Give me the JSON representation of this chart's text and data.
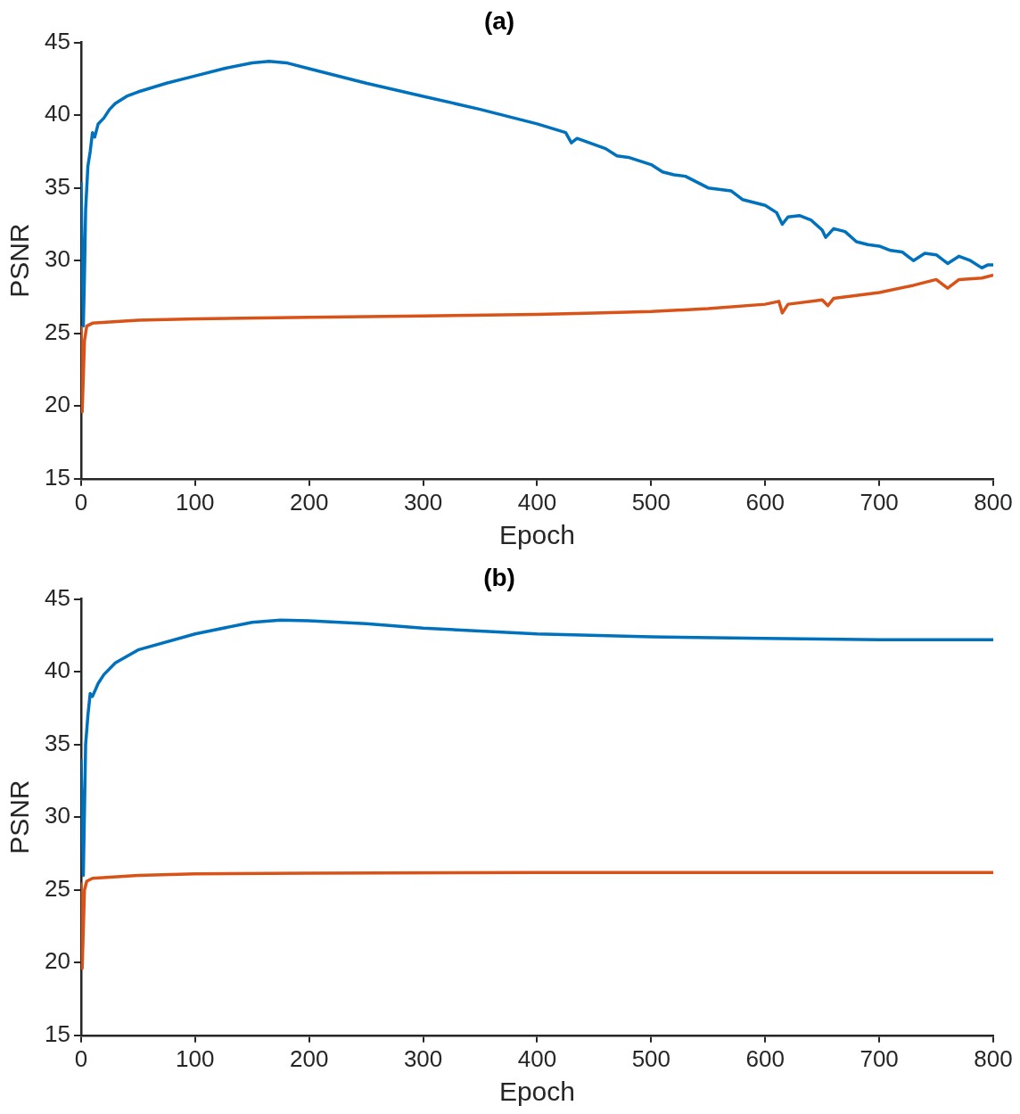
{
  "chart_data": [
    {
      "type": "line",
      "title": "(a)",
      "xlabel": "Epoch",
      "ylabel": "PSNR",
      "xlim": [
        0,
        800
      ],
      "xticks": [
        0,
        100,
        200,
        300,
        400,
        500,
        600,
        700,
        800
      ],
      "ylim": [
        15,
        45
      ],
      "yticks": [
        15,
        20,
        25,
        30,
        35,
        40,
        45
      ],
      "grid": false,
      "marker": "none",
      "series": [
        {
          "color": "#0072bd",
          "x": [
            0,
            2,
            3,
            4,
            6,
            8,
            10,
            12,
            15,
            20,
            25,
            30,
            40,
            50,
            75,
            100,
            125,
            150,
            165,
            180,
            200,
            250,
            300,
            350,
            400,
            425,
            430,
            435,
            460,
            470,
            480,
            500,
            510,
            520,
            530,
            550,
            570,
            580,
            600,
            610,
            615,
            620,
            630,
            640,
            650,
            653,
            660,
            670,
            680,
            690,
            700,
            710,
            720,
            730,
            740,
            750,
            760,
            770,
            780,
            790,
            795,
            800
          ],
          "values": [
            35.4,
            25.5,
            29,
            33.5,
            36.5,
            37.5,
            38.8,
            38.5,
            39.4,
            39.8,
            40.4,
            40.8,
            41.3,
            41.6,
            42.2,
            42.7,
            43.2,
            43.6,
            43.7,
            43.6,
            43.2,
            42.2,
            41.3,
            40.4,
            39.4,
            38.8,
            38.1,
            38.4,
            37.7,
            37.2,
            37.1,
            36.6,
            36.1,
            35.9,
            35.8,
            35,
            34.8,
            34.2,
            33.8,
            33.3,
            32.5,
            33,
            33.1,
            32.8,
            32.1,
            31.6,
            32.2,
            32,
            31.3,
            31.1,
            31,
            30.7,
            30.6,
            30,
            30.5,
            30.4,
            29.8,
            30.3,
            30,
            29.5,
            29.7,
            29.7
          ]
        },
        {
          "color": "#d95319",
          "x": [
            0,
            1,
            3,
            5,
            10,
            50,
            100,
            200,
            300,
            400,
            450,
            500,
            550,
            600,
            612,
            615,
            620,
            650,
            655,
            660,
            700,
            730,
            750,
            760,
            770,
            790,
            800
          ],
          "values": [
            25.5,
            19.6,
            24.5,
            25.5,
            25.7,
            25.9,
            26,
            26.1,
            26.2,
            26.3,
            26.4,
            26.5,
            26.7,
            27,
            27.2,
            26.4,
            27,
            27.3,
            26.9,
            27.4,
            27.8,
            28.3,
            28.7,
            28.1,
            28.7,
            28.8,
            29
          ]
        }
      ]
    },
    {
      "type": "line",
      "title": "(b)",
      "xlabel": "Epoch",
      "ylabel": "PSNR",
      "xlim": [
        0,
        800
      ],
      "xticks": [
        0,
        100,
        200,
        300,
        400,
        500,
        600,
        700,
        800
      ],
      "ylim": [
        15,
        45
      ],
      "yticks": [
        15,
        20,
        25,
        30,
        35,
        40,
        45
      ],
      "grid": false,
      "marker": "none",
      "series": [
        {
          "color": "#0072bd",
          "x": [
            0,
            2,
            4,
            6,
            8,
            10,
            15,
            20,
            30,
            50,
            100,
            150,
            175,
            200,
            250,
            300,
            400,
            500,
            600,
            700,
            800
          ],
          "values": [
            34,
            26,
            35,
            37,
            38.5,
            38.3,
            39.2,
            39.8,
            40.6,
            41.5,
            42.6,
            43.4,
            43.55,
            43.5,
            43.3,
            43,
            42.6,
            42.4,
            42.3,
            42.2,
            42.2
          ]
        },
        {
          "color": "#d95319",
          "x": [
            0,
            1,
            3,
            5,
            10,
            50,
            100,
            200,
            400,
            800
          ],
          "values": [
            25.5,
            19.6,
            25,
            25.6,
            25.8,
            26,
            26.1,
            26.15,
            26.2,
            26.2
          ]
        }
      ]
    }
  ]
}
